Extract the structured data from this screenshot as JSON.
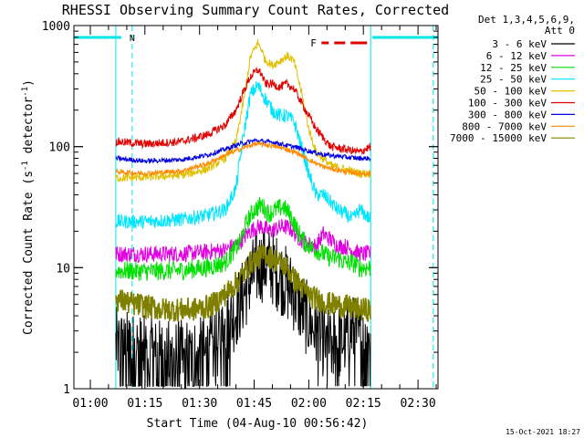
{
  "chart_data": {
    "type": "line",
    "title": "RHESSI Observing Summary Count Rates, Corrected",
    "xlabel": "Start Time (04-Aug-10 00:56:42)",
    "ylabel_main": "Corrected Count Rate (s",
    "ylabel_sup1": "-1",
    "ylabel_mid": " detector",
    "ylabel_sup2": "-1",
    "ylabel_end": ")",
    "yscale": "log",
    "ylim": [
      1,
      1000
    ],
    "xlim_minutes": [
      55.5,
      155.5
    ],
    "x_ticks": [
      {
        "label": "01:00",
        "minutes": 60
      },
      {
        "label": "01:15",
        "minutes": 75
      },
      {
        "label": "01:30",
        "minutes": 90
      },
      {
        "label": "01:45",
        "minutes": 105
      },
      {
        "label": "02:00",
        "minutes": 120
      },
      {
        "label": "02:15",
        "minutes": 135
      },
      {
        "label": "02:30",
        "minutes": 150
      }
    ],
    "y_ticks": [
      {
        "label": "1",
        "value": 1
      },
      {
        "label": "10",
        "value": 10
      },
      {
        "label": "100",
        "value": 100
      },
      {
        "label": "1000",
        "value": 1000
      }
    ],
    "legend_header": [
      "Det 1,3,4,5,6,9,",
      "Att 0"
    ],
    "data_start_minutes": 67,
    "data_end_minutes": 137,
    "flags": [
      {
        "label": "N",
        "color": "#00e5e5",
        "start_minutes": 55.5,
        "end_minutes": 68.5,
        "marker_minutes": 71.5
      },
      {
        "label": "",
        "color": "#00e5e5",
        "start_minutes": 137.5,
        "end_minutes": 155.5,
        "marker_minutes": 154.2
      },
      {
        "label": "F",
        "color": "#e00000",
        "segments_minutes": [
          [
            123.5,
            125.5
          ],
          [
            127,
            130
          ],
          [
            131.5,
            136
          ]
        ]
      }
    ],
    "series": [
      {
        "name": "3 - 6 keV",
        "color": "#000000",
        "times": [
          67,
          73,
          80,
          88,
          93,
          97,
          101,
          104,
          106,
          108,
          110,
          113,
          116,
          119,
          122,
          126,
          129,
          132,
          134,
          137
        ],
        "values": [
          2.3,
          2.0,
          1.8,
          1.8,
          2.0,
          3.0,
          5.0,
          8.0,
          10,
          11,
          10,
          8,
          6,
          4,
          3,
          2.2,
          2.5,
          3,
          2.5,
          2.5
        ]
      },
      {
        "name": "6 - 12 keV",
        "color": "#e000e0",
        "times": [
          67,
          75,
          85,
          92,
          97,
          101,
          103,
          105,
          107,
          109,
          111,
          113,
          115,
          117,
          119,
          122,
          124,
          126,
          128,
          130,
          132,
          134,
          137
        ],
        "values": [
          13,
          13,
          13,
          13.5,
          14,
          16,
          19,
          21,
          22,
          20,
          21,
          22,
          21,
          18,
          16,
          15,
          19,
          17,
          15,
          15,
          14,
          13,
          13
        ]
      },
      {
        "name": "12 - 25 keV",
        "color": "#00e000",
        "times": [
          67,
          75,
          85,
          92,
          97,
          101,
          103,
          105,
          107,
          109,
          111,
          113,
          115,
          117,
          119,
          122,
          124,
          126,
          128,
          130,
          132,
          134,
          137
        ],
        "values": [
          9.5,
          9.3,
          9.5,
          10,
          11,
          16,
          24,
          30,
          33,
          28,
          30,
          32,
          27,
          20,
          16,
          14,
          13,
          12,
          12,
          11,
          11,
          10,
          10
        ]
      },
      {
        "name": "25 - 50 keV",
        "color": "#00e5ff",
        "times": [
          67,
          75,
          85,
          92,
          97,
          100,
          102,
          104,
          106,
          108,
          110,
          112,
          114,
          116,
          118,
          120,
          122,
          124,
          126,
          128,
          130,
          132,
          134,
          137
        ],
        "values": [
          24,
          24,
          25,
          27,
          30,
          45,
          120,
          270,
          320,
          250,
          200,
          180,
          180,
          160,
          100,
          60,
          40,
          40,
          35,
          30,
          28,
          25,
          30,
          25
        ]
      },
      {
        "name": "50 - 100 keV",
        "color": "#e0c000",
        "times": [
          67,
          75,
          85,
          92,
          97,
          100,
          102,
          104,
          106,
          107,
          108,
          110,
          112,
          114,
          115,
          116,
          118,
          120,
          122,
          126,
          130,
          134,
          137
        ],
        "values": [
          55,
          56,
          58,
          65,
          80,
          110,
          230,
          550,
          720,
          640,
          520,
          470,
          510,
          560,
          540,
          500,
          280,
          140,
          90,
          70,
          65,
          60,
          60
        ]
      },
      {
        "name": "100 - 300 keV",
        "color": "#e00000",
        "times": [
          67,
          75,
          85,
          92,
          97,
          100,
          102,
          104,
          106,
          107,
          108,
          110,
          112,
          114,
          116,
          118,
          120,
          122,
          126,
          130,
          134,
          137
        ],
        "values": [
          110,
          105,
          110,
          125,
          150,
          200,
          280,
          380,
          430,
          400,
          330,
          330,
          310,
          330,
          300,
          230,
          180,
          140,
          100,
          95,
          90,
          100
        ]
      },
      {
        "name": "300 - 800 keV",
        "color": "#0000e0",
        "times": [
          67,
          75,
          85,
          92,
          97,
          101,
          105,
          108,
          111,
          114,
          117,
          120,
          124,
          130,
          134,
          137
        ],
        "values": [
          80,
          76,
          78,
          85,
          95,
          105,
          112,
          110,
          108,
          102,
          98,
          92,
          86,
          82,
          80,
          80
        ]
      },
      {
        "name": "800 - 7000 keV",
        "color": "#ff8800",
        "times": [
          67,
          75,
          85,
          92,
          97,
          101,
          105,
          108,
          111,
          114,
          117,
          120,
          124,
          130,
          134,
          137
        ],
        "values": [
          62,
          60,
          63,
          72,
          85,
          95,
          105,
          104,
          100,
          95,
          88,
          78,
          68,
          62,
          60,
          60
        ]
      },
      {
        "name": "7000 - 15000 keV",
        "color": "#808000",
        "times": [
          67,
          72,
          80,
          88,
          93,
          97,
          101,
          104,
          106,
          108,
          110,
          112,
          114,
          116,
          118,
          120,
          122,
          126,
          130,
          134,
          137
        ],
        "values": [
          5.5,
          5.0,
          4.5,
          4.5,
          4.8,
          6,
          8,
          11,
          12,
          13,
          12,
          11,
          10,
          8,
          7,
          6,
          5.5,
          5,
          4.8,
          4.5,
          4.5
        ]
      }
    ]
  },
  "timestamp": "15-Oct-2021 18:27"
}
